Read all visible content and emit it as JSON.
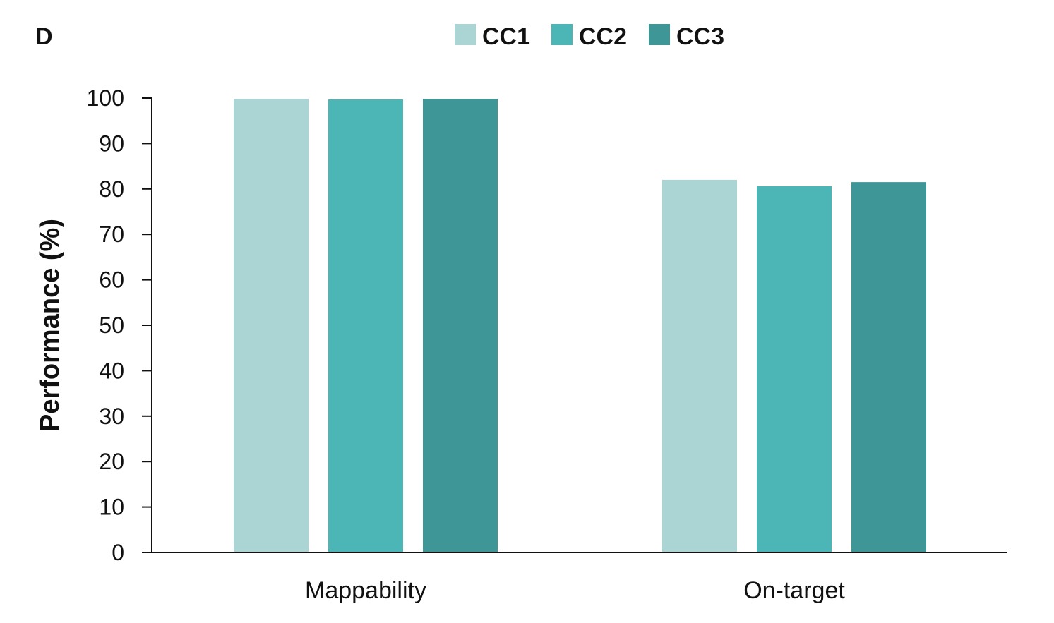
{
  "panel_label": "D",
  "chart_data": {
    "type": "bar",
    "title": "",
    "xlabel": "",
    "ylabel": "Performance (%)",
    "ylim": [
      0,
      100
    ],
    "yticks": [
      0,
      10,
      20,
      30,
      40,
      50,
      60,
      70,
      80,
      90,
      100
    ],
    "grid": false,
    "legend_position": "top-center",
    "categories": [
      "Mappability",
      "On-target"
    ],
    "series": [
      {
        "name": "CC1",
        "color": "#abd5d4",
        "values": [
          99.8,
          82.0
        ]
      },
      {
        "name": "CC2",
        "color": "#4cb6b7",
        "values": [
          99.7,
          80.6
        ]
      },
      {
        "name": "CC3",
        "color": "#3e9696",
        "values": [
          99.8,
          81.5
        ]
      }
    ]
  }
}
